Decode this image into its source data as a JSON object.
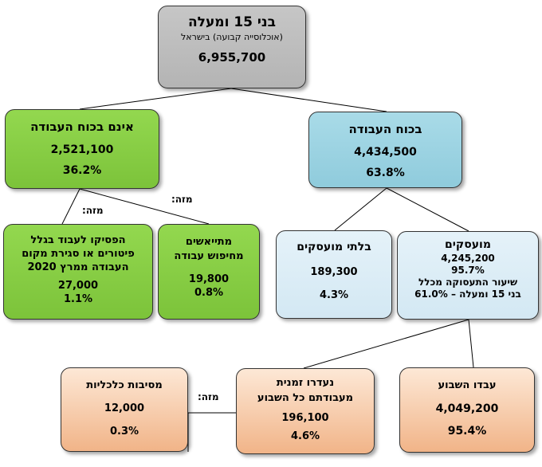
{
  "root": {
    "title": "בני 15 ומעלה",
    "subtitle": "(אוכלוסייה קבועה) בישראל",
    "value": "6,955,700"
  },
  "labor_force": {
    "title": "בכוח העבודה",
    "value": "4,434,500",
    "percent": "63.8%"
  },
  "not_labor_force": {
    "title": "אינם בכוח העבודה",
    "value": "2,521,100",
    "percent": "36.2%"
  },
  "of_which_label": "מזה:",
  "employed": {
    "title": "מועסקים",
    "value": "4,245,200",
    "percent": "95.7%",
    "rate_line1": "שיעור התעסוקה מכלל",
    "rate_line2": "בני 15 ומעלה – 61.0%"
  },
  "unemployed": {
    "title": "בלתי מועסקים",
    "value": "189,300",
    "percent": "4.3%"
  },
  "discouraged": {
    "line1": "מתייאשים",
    "line2": "מחיפוש עבודה",
    "value": "19,800",
    "percent": "0.8%"
  },
  "stopped_working": {
    "line1": "הפסיקו לעבוד בגלל",
    "line2": "פיטורים או סגירת מקום",
    "line3": "העבודה ממרץ 2020",
    "value": "27,000",
    "percent": "1.1%"
  },
  "worked_week": {
    "title": "עבדו השבוע",
    "value": "4,049,200",
    "percent": "95.4%"
  },
  "temp_absent": {
    "line1": "נעדרו זמנית",
    "line2": "מעבודתם כל השבוע",
    "value": "196,100",
    "percent": "4.6%"
  },
  "economic_reasons": {
    "title": "מסיבות כלכליות",
    "value": "12,000",
    "percent": "0.3%"
  },
  "colors": {
    "gray": "#c0c0c0",
    "green": "#8ccf47",
    "blue": "#9dd3e2",
    "light_blue": "#dcedf6",
    "peach": "#f7c9a5"
  }
}
